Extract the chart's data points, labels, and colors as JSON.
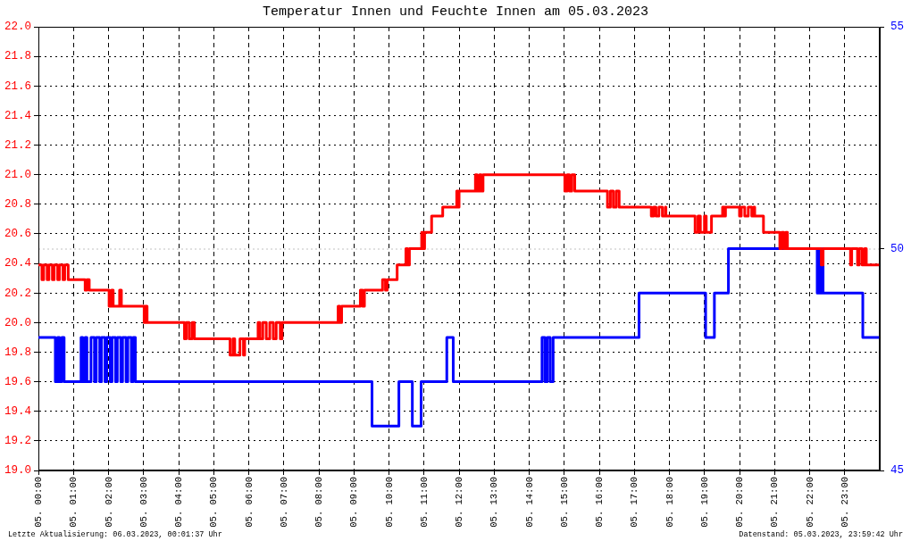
{
  "chart_data": {
    "type": "step",
    "title": "Temperatur Innen und Feuchte Innen am 05.03.2023",
    "annotations": [
      "Letzte Aktualisierung: 06.03.2023, 00:01:37 Uhr",
      "Datenstand: 05.03.2023, 23:59:42 Uhr"
    ],
    "xlim": [
      "2023-03-05T00:00",
      "2023-03-06T00:00"
    ],
    "xticks": [
      {
        "value": "2023-03-05T00:00",
        "label": "05. 00:00"
      },
      {
        "value": "2023-03-05T01:00",
        "label": "05. 01:00"
      },
      {
        "value": "2023-03-05T02:00",
        "label": "05. 02:00"
      },
      {
        "value": "2023-03-05T03:00",
        "label": "05. 03:00"
      },
      {
        "value": "2023-03-05T04:00",
        "label": "05. 04:00"
      },
      {
        "value": "2023-03-05T05:00",
        "label": "05. 05:00"
      },
      {
        "value": "2023-03-05T06:00",
        "label": "05. 06:00"
      },
      {
        "value": "2023-03-05T07:00",
        "label": "05. 07:00"
      },
      {
        "value": "2023-03-05T08:00",
        "label": "05. 08:00"
      },
      {
        "value": "2023-03-05T09:00",
        "label": "05. 09:00"
      },
      {
        "value": "2023-03-05T10:00",
        "label": "05. 10:00"
      },
      {
        "value": "2023-03-05T11:00",
        "label": "05. 11:00"
      },
      {
        "value": "2023-03-05T12:00",
        "label": "05. 12:00"
      },
      {
        "value": "2023-03-05T13:00",
        "label": "05. 13:00"
      },
      {
        "value": "2023-03-05T14:00",
        "label": "05. 14:00"
      },
      {
        "value": "2023-03-05T15:00",
        "label": "05. 15:00"
      },
      {
        "value": "2023-03-05T16:00",
        "label": "05. 16:00"
      },
      {
        "value": "2023-03-05T17:00",
        "label": "05. 17:00"
      },
      {
        "value": "2023-03-05T18:00",
        "label": "05. 18:00"
      },
      {
        "value": "2023-03-05T19:00",
        "label": "05. 19:00"
      },
      {
        "value": "2023-03-05T20:00",
        "label": "05. 20:00"
      },
      {
        "value": "2023-03-05T21:00",
        "label": "05. 21:00"
      },
      {
        "value": "2023-03-05T22:00",
        "label": "05. 22:00"
      },
      {
        "value": "2023-03-05T23:00",
        "label": "05. 23:00"
      }
    ],
    "ylim": [
      19,
      22
    ],
    "yticks": [
      {
        "value": 19,
        "label": "19.0"
      },
      19.2,
      19.4,
      19.6,
      19.8,
      {
        "value": 20,
        "label": "20.0"
      },
      20.2,
      20.4,
      20.6,
      20.8,
      {
        "value": 21,
        "label": "21.0"
      },
      21.2,
      21.4,
      21.6,
      21.8,
      {
        "value": 22,
        "label": "22.0"
      }
    ],
    "y2lim": [
      45,
      55
    ],
    "y2ticks": [
      45,
      50,
      55
    ],
    "grid": true,
    "ref_lines": [
      {
        "axis": "y2",
        "value": 50,
        "color": "#c0c0c0",
        "line_style": "dotted"
      }
    ],
    "series": [
      {
        "color": "#ff0000",
        "x": [
          "2023-03-05T00:00",
          "2023-03-05T00:06",
          "2023-03-05T00:09",
          "2023-03-05T00:15",
          "2023-03-05T00:18",
          "2023-03-05T00:24",
          "2023-03-05T00:27",
          "2023-03-05T00:33",
          "2023-03-05T00:36",
          "2023-03-05T00:42",
          "2023-03-05T00:45",
          "2023-03-05T00:51",
          "2023-03-05T01:20",
          "2023-03-05T01:23",
          "2023-03-05T01:27",
          "2023-03-05T02:01",
          "2023-03-05T02:05",
          "2023-03-05T02:08",
          "2023-03-05T02:19",
          "2023-03-05T02:22",
          "2023-03-05T03:01",
          "2023-03-05T03:03",
          "2023-03-05T03:06",
          "2023-03-05T04:10",
          "2023-03-05T04:13",
          "2023-03-05T04:18",
          "2023-03-05T04:23",
          "2023-03-05T04:27",
          "2023-03-05T05:28",
          "2023-03-05T05:33",
          "2023-03-05T05:36",
          "2023-03-05T05:45",
          "2023-03-05T05:51",
          "2023-03-05T05:53",
          "2023-03-05T06:16",
          "2023-03-05T06:19",
          "2023-03-05T06:24",
          "2023-03-05T06:30",
          "2023-03-05T06:36",
          "2023-03-05T06:42",
          "2023-03-05T06:47",
          "2023-03-05T06:54",
          "2023-03-05T06:57",
          "2023-03-05T08:33",
          "2023-03-05T08:36",
          "2023-03-05T08:39",
          "2023-03-05T09:11",
          "2023-03-05T09:15",
          "2023-03-05T09:18",
          "2023-03-05T09:49",
          "2023-03-05T09:54",
          "2023-03-05T09:57",
          "2023-03-05T10:14",
          "2023-03-05T10:29",
          "2023-03-05T10:32",
          "2023-03-05T10:35",
          "2023-03-05T10:56",
          "2023-03-05T10:59",
          "2023-03-05T11:01",
          "2023-03-05T11:13",
          "2023-03-05T11:32",
          "2023-03-05T11:56",
          "2023-03-05T11:58",
          "2023-03-05T12:00",
          "2023-03-05T12:28",
          "2023-03-05T12:31",
          "2023-03-05T12:35",
          "2023-03-05T12:38",
          "2023-03-05T12:41",
          "2023-03-05T15:01",
          "2023-03-05T15:05",
          "2023-03-05T15:09",
          "2023-03-05T15:13",
          "2023-03-05T15:18",
          "2023-03-05T16:14",
          "2023-03-05T16:19",
          "2023-03-05T16:24",
          "2023-03-05T16:29",
          "2023-03-05T16:34",
          "2023-03-05T17:29",
          "2023-03-05T17:33",
          "2023-03-05T17:37",
          "2023-03-05T17:42",
          "2023-03-05T17:48",
          "2023-03-05T17:53",
          "2023-03-05T17:54",
          "2023-03-05T18:44",
          "2023-03-05T18:49",
          "2023-03-05T18:53",
          "2023-03-05T19:00",
          "2023-03-05T19:03",
          "2023-03-05T19:12",
          "2023-03-05T19:31",
          "2023-03-05T19:34",
          "2023-03-05T19:36",
          "2023-03-05T20:00",
          "2023-03-05T20:03",
          "2023-03-05T20:09",
          "2023-03-05T20:15",
          "2023-03-05T20:21",
          "2023-03-05T20:24",
          "2023-03-05T20:26",
          "2023-03-05T20:41",
          "2023-03-05T21:09",
          "2023-03-05T21:12",
          "2023-03-05T21:16",
          "2023-03-05T21:19",
          "2023-03-05T21:22",
          "2023-03-05T22:20",
          "2023-03-05T22:23",
          "2023-03-05T23:10",
          "2023-03-05T23:12",
          "2023-03-05T23:22",
          "2023-03-05T23:25",
          "2023-03-05T23:30",
          "2023-03-05T23:34",
          "2023-03-05T23:37",
          "2023-03-05T23:59"
        ],
        "values": [
          20.39,
          20.29,
          20.39,
          20.29,
          20.39,
          20.29,
          20.39,
          20.29,
          20.39,
          20.29,
          20.39,
          20.29,
          20.22,
          20.29,
          20.22,
          20.11,
          20.22,
          20.11,
          20.22,
          20.11,
          20.0,
          20.11,
          20.0,
          19.89,
          20.0,
          19.89,
          20.0,
          19.89,
          19.78,
          19.89,
          19.78,
          19.89,
          19.78,
          19.89,
          20.0,
          19.89,
          20.0,
          19.89,
          20.0,
          19.89,
          20.0,
          19.89,
          20.0,
          20.11,
          20.0,
          20.11,
          20.22,
          20.11,
          20.22,
          20.29,
          20.22,
          20.29,
          20.39,
          20.5,
          20.39,
          20.5,
          20.61,
          20.5,
          20.61,
          20.72,
          20.78,
          20.89,
          20.78,
          20.89,
          21.0,
          20.89,
          21.0,
          20.89,
          21.0,
          20.89,
          21.0,
          20.89,
          21.0,
          20.89,
          20.78,
          20.89,
          20.78,
          20.89,
          20.78,
          20.72,
          20.78,
          20.72,
          20.78,
          20.72,
          20.78,
          20.72,
          20.61,
          20.72,
          20.61,
          20.72,
          20.61,
          20.72,
          20.78,
          20.72,
          20.78,
          20.72,
          20.78,
          20.72,
          20.78,
          20.72,
          20.78,
          20.72,
          20.61,
          20.5,
          20.61,
          20.5,
          20.61,
          20.5,
          20.39,
          20.5,
          20.39,
          20.5,
          20.39,
          20.5,
          20.39,
          20.5,
          20.39,
          20.39
        ]
      },
      {
        "color": "#0000ff",
        "axis": "y2",
        "x": [
          "2023-03-05T00:00",
          "2023-03-05T00:29",
          "2023-03-05T00:33",
          "2023-03-05T00:36",
          "2023-03-05T00:40",
          "2023-03-05T00:44",
          "2023-03-05T01:13",
          "2023-03-05T01:16",
          "2023-03-05T01:20",
          "2023-03-05T01:23",
          "2023-03-05T01:30",
          "2023-03-05T01:36",
          "2023-03-05T01:39",
          "2023-03-05T01:45",
          "2023-03-05T01:48",
          "2023-03-05T01:54",
          "2023-03-05T01:57",
          "2023-03-05T02:03",
          "2023-03-05T02:06",
          "2023-03-05T02:12",
          "2023-03-05T02:15",
          "2023-03-05T02:21",
          "2023-03-05T02:24",
          "2023-03-05T02:30",
          "2023-03-05T02:33",
          "2023-03-05T02:39",
          "2023-03-05T02:42",
          "2023-03-05T02:46",
          "2023-03-05T09:31",
          "2023-03-05T10:17",
          "2023-03-05T10:40",
          "2023-03-05T10:55",
          "2023-03-05T11:39",
          "2023-03-05T11:50",
          "2023-03-05T14:22",
          "2023-03-05T14:27",
          "2023-03-05T14:31",
          "2023-03-05T14:36",
          "2023-03-05T14:41",
          "2023-03-05T17:08",
          "2023-03-05T19:02",
          "2023-03-05T19:17",
          "2023-03-05T19:41",
          "2023-03-05T22:13",
          "2023-03-05T22:16",
          "2023-03-05T22:19",
          "2023-03-05T22:22",
          "2023-03-05T22:23",
          "2023-03-05T23:31",
          "2023-03-05T23:59"
        ],
        "values": [
          48,
          47,
          48,
          47,
          48,
          47,
          48,
          47,
          48,
          47,
          48,
          47,
          48,
          47,
          48,
          47,
          48,
          47,
          48,
          47,
          48,
          47,
          48,
          47,
          48,
          47,
          48,
          47,
          46,
          47,
          46,
          47,
          48,
          47,
          48,
          47,
          48,
          47,
          48,
          49,
          48,
          49,
          50,
          49,
          50,
          49,
          50,
          49,
          48,
          48
        ]
      }
    ]
  }
}
